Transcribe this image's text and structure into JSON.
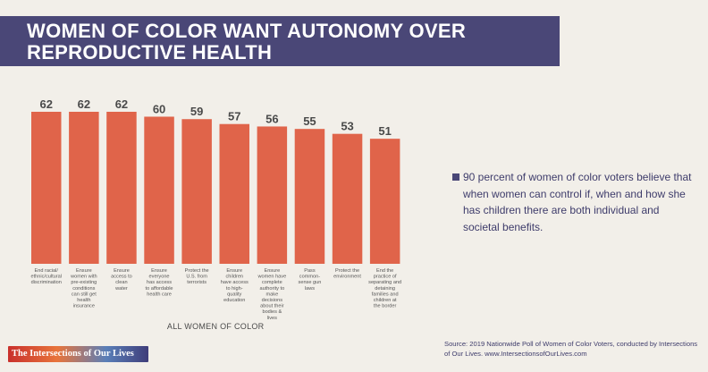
{
  "title": "WOMEN OF COLOR WANT AUTONOMY OVER REPRODUCTIVE HEALTH",
  "note": "90 percent of women of color voters believe that when women can control if, when and how she has children there are both individual and societal benefits.",
  "source": "Source: 2019 Nationwide Poll of Women of Color Voters, conducted by Intersections of Our Lives. www.IntersectionsofOurLives.com",
  "logo": "The Intersections of Our Lives",
  "colors": {
    "bar": "#e0644a",
    "header": "#4a4777",
    "background": "#f2efe9",
    "text_accent": "#3e3c6b"
  },
  "chart_data": {
    "type": "bar",
    "title": "",
    "xlabel": "ALL WOMEN OF COLOR",
    "ylabel": "",
    "ylim": [
      0,
      62
    ],
    "grid": false,
    "categories": [
      [
        "End racial/",
        "ethnic/cultural",
        "discrimination"
      ],
      [
        "Ensure",
        "women with",
        "pre-existing",
        "conditions",
        "can still get",
        "health",
        "insurance"
      ],
      [
        "Ensure",
        "access to",
        "clean",
        "water"
      ],
      [
        "Ensure",
        "everyone",
        "has access",
        "to affordable",
        "health care"
      ],
      [
        "Protect the",
        "U.S. from",
        "terrorists"
      ],
      [
        "Ensure",
        "children",
        "have access",
        "to high-",
        "quality",
        "education"
      ],
      [
        "Ensure",
        "women have",
        "complete",
        "authority to",
        "make",
        "decisions",
        "about their",
        "bodies &",
        "lives"
      ],
      [
        "Pass",
        "common-",
        "sense gun",
        "laws"
      ],
      [
        "Protect the",
        "environment"
      ],
      [
        "End the",
        "practice of",
        "separating and",
        "detaining",
        "families and",
        "children at",
        "the border"
      ]
    ],
    "values": [
      62,
      62,
      62,
      60,
      59,
      57,
      56,
      55,
      53,
      51
    ]
  }
}
